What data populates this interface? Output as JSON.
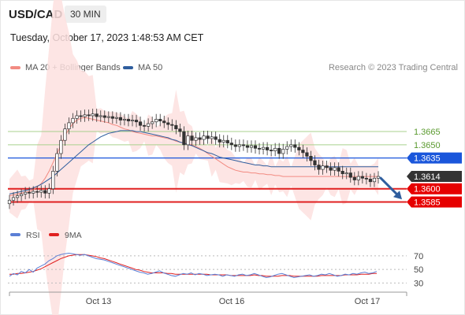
{
  "header": {
    "symbol": "USD/CAD",
    "timeframe": "30 MIN",
    "datetime": "Tuesday, October 17, 2023 1:48:53 AM CET"
  },
  "legend": {
    "ma20": {
      "label": "MA 20 + Bollinger Bands",
      "color": "#f28b82"
    },
    "ma50": {
      "label": "MA 50",
      "color": "#2f5e9e"
    },
    "credit": "Research © 2023 Trading Central"
  },
  "chart_data": [
    {
      "type": "candlestick",
      "title": "USD/CAD 30 MIN",
      "x_ticks": [
        "Oct 13",
        "Oct 16",
        "Oct 17"
      ],
      "ylim": [
        1.3555,
        1.3725
      ],
      "levels": [
        {
          "value": "1.3665",
          "kind": "resistance",
          "color": "#a8d08d",
          "label_bg": "none",
          "label_color": "#5a9a2e"
        },
        {
          "value": "1.3650",
          "kind": "resistance",
          "color": "#a8d08d",
          "label_bg": "none",
          "label_color": "#5a9a2e"
        },
        {
          "value": "1.3635",
          "kind": "pivot",
          "color": "#1a56db",
          "label_bg": "#1a56db",
          "label_color": "#ffffff"
        },
        {
          "value": "1.3614",
          "kind": "last",
          "color": "none",
          "label_bg": "#333333",
          "label_color": "#ffffff"
        },
        {
          "value": "1.3600",
          "kind": "support",
          "color": "#e02020",
          "label_bg": "#e60000",
          "label_color": "#ffffff"
        },
        {
          "value": "1.3585",
          "kind": "support",
          "color": "#e02020",
          "label_bg": "#e60000",
          "label_color": "#ffffff"
        }
      ],
      "close_path": [
        1.3587,
        1.359,
        1.3592,
        1.3594,
        1.3596,
        1.3595,
        1.3597,
        1.3596,
        1.3598,
        1.3595,
        1.36,
        1.362,
        1.364,
        1.3655,
        1.3668,
        1.3675,
        1.368,
        1.3683,
        1.3682,
        1.3684,
        1.3683,
        1.3685,
        1.3682,
        1.3683,
        1.3681,
        1.3682,
        1.368,
        1.3681,
        1.3678,
        1.3679,
        1.3677,
        1.3678,
        1.3676,
        1.3672,
        1.3671,
        1.3674,
        1.3676,
        1.3679,
        1.3677,
        1.3675,
        1.3673,
        1.3672,
        1.3668,
        1.3665,
        1.365,
        1.366,
        1.3655,
        1.3658,
        1.3656,
        1.366,
        1.3657,
        1.3659,
        1.3656,
        1.3653,
        1.3655,
        1.3652,
        1.365,
        1.3648,
        1.365,
        1.3649,
        1.3647,
        1.3649,
        1.3646,
        1.3645,
        1.3647,
        1.3644,
        1.3643,
        1.3646,
        1.364,
        1.3645,
        1.3648,
        1.365,
        1.3647,
        1.3644,
        1.3641,
        1.3637,
        1.3632,
        1.3627,
        1.3622,
        1.3626,
        1.3624,
        1.3621,
        1.3624,
        1.362,
        1.3617,
        1.3618,
        1.3613,
        1.361,
        1.3614,
        1.3612,
        1.3611,
        1.3608,
        1.3612,
        1.3614
      ],
      "ma20": [
        1.3592,
        1.3593,
        1.3594,
        1.3595,
        1.3596,
        1.3597,
        1.3599,
        1.3602,
        1.3606,
        1.3612,
        1.362,
        1.363,
        1.364,
        1.365,
        1.366,
        1.3668,
        1.3674,
        1.3678,
        1.368,
        1.3681,
        1.368,
        1.3679,
        1.3678,
        1.3677,
        1.3676,
        1.3675,
        1.3673,
        1.3672,
        1.367,
        1.3668,
        1.3667,
        1.3665,
        1.3664,
        1.3663,
        1.3662,
        1.3661,
        1.366,
        1.366,
        1.3659,
        1.3658,
        1.3657,
        1.3656,
        1.3654,
        1.3653,
        1.3652,
        1.3651,
        1.365,
        1.3648,
        1.3646,
        1.3643,
        1.364,
        1.3637,
        1.3634,
        1.3631,
        1.3628,
        1.3625,
        1.3623,
        1.3621,
        1.362,
        1.3619,
        1.3619,
        1.3618,
        1.3618,
        1.3617,
        1.3617,
        1.3616,
        1.3616,
        1.3615,
        1.3615,
        1.3614,
        1.3614,
        1.3614,
        1.3614,
        1.3614,
        1.3614,
        1.3614,
        1.3614,
        1.3614,
        1.3614,
        1.3614,
        1.3614,
        1.3614,
        1.3614,
        1.3614,
        1.3614,
        1.3614,
        1.3614,
        1.3614,
        1.3614,
        1.3614,
        1.3614,
        1.3614,
        1.3614,
        1.3614
      ],
      "ma50": [
        1.3594,
        1.3595,
        1.3596,
        1.3597,
        1.3598,
        1.3599,
        1.3601,
        1.3603,
        1.3605,
        1.3608,
        1.3611,
        1.3614,
        1.3618,
        1.3622,
        1.3626,
        1.363,
        1.3634,
        1.3638,
        1.3642,
        1.3646,
        1.365,
        1.3653,
        1.3656,
        1.3659,
        1.3661,
        1.3663,
        1.3664,
        1.3665,
        1.3666,
        1.3666,
        1.3666,
        1.3666,
        1.3665,
        1.3665,
        1.3664,
        1.3663,
        1.3662,
        1.3661,
        1.366,
        1.3659,
        1.3658,
        1.3656,
        1.3655,
        1.3653,
        1.3652,
        1.365,
        1.3649,
        1.3647,
        1.3645,
        1.3643,
        1.3641,
        1.364,
        1.3638,
        1.3636,
        1.3635,
        1.3634,
        1.3633,
        1.3632,
        1.3631,
        1.363,
        1.3629,
        1.3628,
        1.3627,
        1.3627,
        1.3626,
        1.3626,
        1.3625,
        1.3625,
        1.3625,
        1.3625,
        1.3625,
        1.3625,
        1.3625,
        1.3625,
        1.3625,
        1.3625,
        1.3625,
        1.3625,
        1.3625,
        1.3625,
        1.3625,
        1.3625,
        1.3625,
        1.3625,
        1.3625,
        1.3625,
        1.3625,
        1.3625,
        1.3625,
        1.3625,
        1.3625,
        1.3625,
        1.3625,
        1.3625
      ],
      "forecast_arrow": {
        "from": 1.3614,
        "to": 1.3588,
        "color": "#2f5e9e"
      }
    },
    {
      "type": "line",
      "title": "RSI",
      "legend": [
        {
          "name": "RSI",
          "color": "#5b7fd6"
        },
        {
          "name": "9MA",
          "color": "#e02020"
        }
      ],
      "y_ticks": [
        "70",
        "50",
        "30"
      ],
      "ylim": [
        20,
        85
      ],
      "rsi": [
        40,
        44,
        42,
        47,
        45,
        50,
        46,
        52,
        55,
        58,
        63,
        66,
        70,
        72,
        73,
        74,
        73,
        72,
        71,
        72,
        70,
        68,
        66,
        65,
        64,
        62,
        60,
        58,
        56,
        54,
        52,
        50,
        48,
        46,
        45,
        43,
        44,
        46,
        48,
        45,
        43,
        41,
        40,
        42,
        44,
        43,
        45,
        42,
        44,
        43,
        41,
        42,
        43,
        42,
        40,
        42,
        41,
        40,
        42,
        43,
        41,
        42,
        44,
        42,
        40,
        38,
        39,
        41,
        43,
        44,
        42,
        40,
        38,
        39,
        40,
        41,
        42,
        40,
        41,
        43,
        42,
        44,
        42,
        40,
        41,
        43,
        42,
        44,
        43,
        45,
        46,
        44,
        45,
        47
      ],
      "ma9": [
        43,
        43,
        44,
        44,
        45,
        46,
        47,
        49,
        51,
        54,
        57,
        60,
        63,
        66,
        68,
        70,
        71,
        72,
        72,
        72,
        71,
        70,
        69,
        67,
        66,
        64,
        62,
        60,
        58,
        56,
        54,
        52,
        50,
        49,
        47,
        46,
        45,
        45,
        45,
        45,
        44,
        44,
        43,
        43,
        43,
        43,
        43,
        43,
        43,
        43,
        43,
        42,
        42,
        42,
        42,
        42,
        41,
        41,
        41,
        41,
        41,
        41,
        42,
        41,
        41,
        40,
        40,
        40,
        40,
        41,
        41,
        41,
        40,
        40,
        40,
        40,
        40,
        40,
        40,
        41,
        41,
        41,
        41,
        41,
        41,
        42,
        42,
        42,
        42,
        43,
        43,
        43,
        44,
        44
      ]
    }
  ]
}
